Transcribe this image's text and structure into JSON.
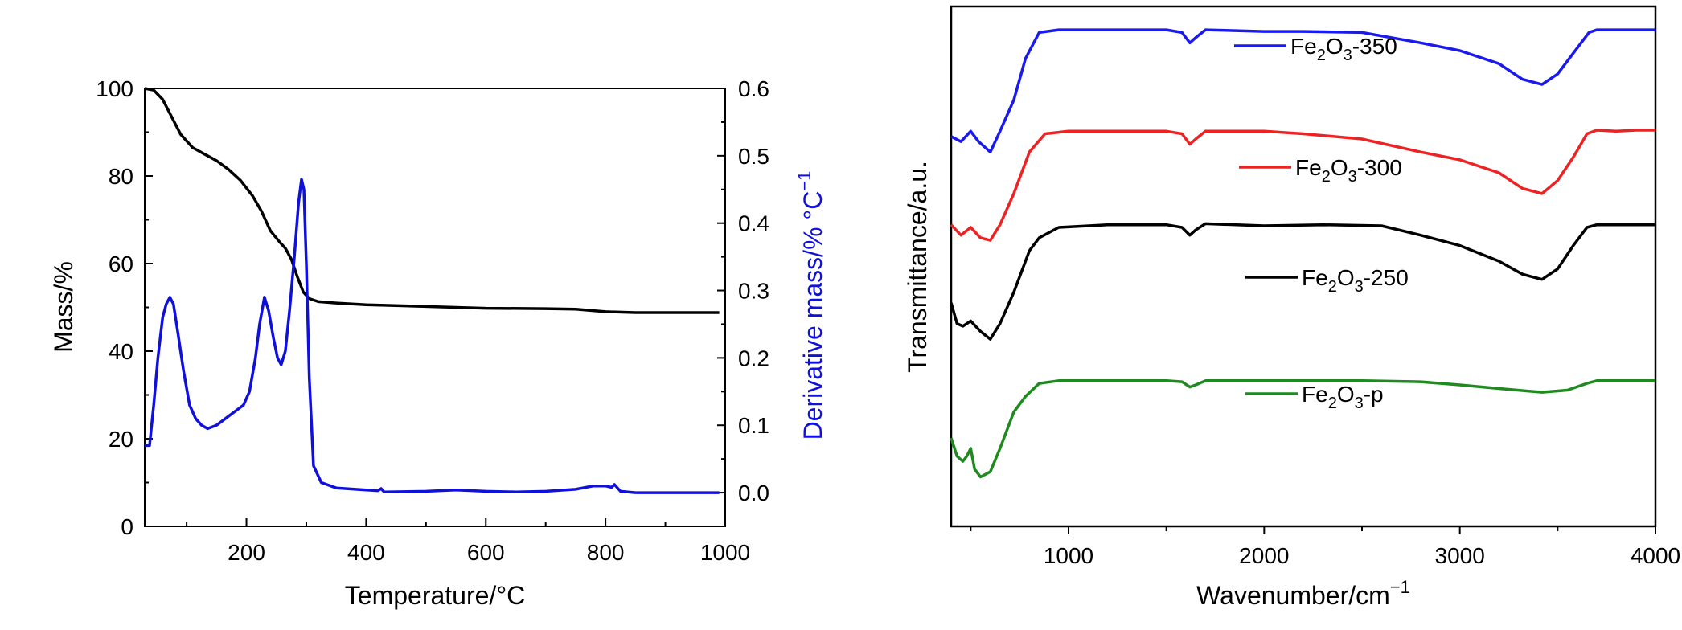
{
  "chart_data": [
    {
      "type": "line",
      "xlabel": "Temperature/°C",
      "ylabel": "Mass/%",
      "y2label": "Derivative mass/% °C",
      "y2label_sup": "−1",
      "xlim": [
        30,
        1000
      ],
      "ylim": [
        0,
        100
      ],
      "y2lim": [
        -0.05,
        0.6
      ],
      "xticks": [
        200,
        400,
        600,
        800,
        1000
      ],
      "yticks": [
        0,
        20,
        40,
        60,
        80,
        100
      ],
      "y2ticks": [
        "0.0",
        "0.1",
        "0.2",
        "0.3",
        "0.4",
        "0.5",
        "0.6"
      ],
      "grid": false,
      "series": [
        {
          "axis": "left",
          "color": "#000000",
          "points": [
            [
              30,
              100
            ],
            [
              45,
              99.6
            ],
            [
              60,
              97.5
            ],
            [
              75,
              93.5
            ],
            [
              90,
              89.5
            ],
            [
              110,
              86.5
            ],
            [
              130,
              85
            ],
            [
              150,
              83.5
            ],
            [
              170,
              81.5
            ],
            [
              190,
              79
            ],
            [
              210,
              75.5
            ],
            [
              225,
              72
            ],
            [
              240,
              67.5
            ],
            [
              255,
              65
            ],
            [
              265,
              63.5
            ],
            [
              275,
              61
            ],
            [
              285,
              57
            ],
            [
              295,
              53.5
            ],
            [
              305,
              52
            ],
            [
              320,
              51.3
            ],
            [
              350,
              51
            ],
            [
              400,
              50.6
            ],
            [
              500,
              50.2
            ],
            [
              600,
              49.8
            ],
            [
              700,
              49.7
            ],
            [
              750,
              49.6
            ],
            [
              800,
              49
            ],
            [
              850,
              48.8
            ],
            [
              900,
              48.8
            ],
            [
              950,
              48.8
            ],
            [
              990,
              48.8
            ]
          ]
        },
        {
          "axis": "right",
          "color": "#1010dd",
          "points": [
            [
              30,
              0.07
            ],
            [
              38,
              0.07
            ],
            [
              45,
              0.13
            ],
            [
              52,
              0.2
            ],
            [
              60,
              0.26
            ],
            [
              66,
              0.28
            ],
            [
              72,
              0.29
            ],
            [
              78,
              0.28
            ],
            [
              85,
              0.24
            ],
            [
              95,
              0.18
            ],
            [
              105,
              0.13
            ],
            [
              115,
              0.11
            ],
            [
              125,
              0.1
            ],
            [
              135,
              0.095
            ],
            [
              150,
              0.1
            ],
            [
              165,
              0.11
            ],
            [
              180,
              0.12
            ],
            [
              195,
              0.13
            ],
            [
              205,
              0.15
            ],
            [
              215,
              0.2
            ],
            [
              222,
              0.25
            ],
            [
              230,
              0.29
            ],
            [
              237,
              0.27
            ],
            [
              245,
              0.23
            ],
            [
              252,
              0.2
            ],
            [
              258,
              0.19
            ],
            [
              265,
              0.21
            ],
            [
              272,
              0.27
            ],
            [
              280,
              0.35
            ],
            [
              287,
              0.43
            ],
            [
              292,
              0.465
            ],
            [
              296,
              0.45
            ],
            [
              300,
              0.34
            ],
            [
              305,
              0.17
            ],
            [
              312,
              0.04
            ],
            [
              325,
              0.015
            ],
            [
              350,
              0.007
            ],
            [
              400,
              0.004
            ],
            [
              420,
              0.003
            ],
            [
              425,
              0.006
            ],
            [
              430,
              0.001
            ],
            [
              500,
              0.002
            ],
            [
              550,
              0.004
            ],
            [
              600,
              0.002
            ],
            [
              650,
              0.001
            ],
            [
              700,
              0.002
            ],
            [
              750,
              0.005
            ],
            [
              780,
              0.01
            ],
            [
              800,
              0.01
            ],
            [
              810,
              0.008
            ],
            [
              815,
              0.012
            ],
            [
              825,
              0.002
            ],
            [
              850,
              0
            ],
            [
              900,
              0
            ],
            [
              950,
              0
            ],
            [
              990,
              0
            ]
          ]
        }
      ]
    },
    {
      "type": "line",
      "xlabel": "Wavenumber/cm",
      "xlabel_sup": "−1",
      "ylabel": "Transmittance/a.u.",
      "xlim": [
        400,
        4000
      ],
      "ylim": [
        0,
        10
      ],
      "xticks": [
        1000,
        2000,
        3000,
        4000
      ],
      "yticks": [],
      "grid": false,
      "legend": "inline labels above each curve",
      "series": [
        {
          "name_main": "Fe",
          "name_sub1": "2",
          "name_mid": "O",
          "name_sub2": "3",
          "name_tail": "-350",
          "color": "#1a1aee",
          "points": [
            [
              400,
              7.5
            ],
            [
              450,
              7.4
            ],
            [
              500,
              7.6
            ],
            [
              540,
              7.4
            ],
            [
              600,
              7.2
            ],
            [
              650,
              7.6
            ],
            [
              720,
              8.2
            ],
            [
              780,
              9.0
            ],
            [
              850,
              9.5
            ],
            [
              950,
              9.55
            ],
            [
              1200,
              9.55
            ],
            [
              1500,
              9.55
            ],
            [
              1580,
              9.5
            ],
            [
              1620,
              9.3
            ],
            [
              1650,
              9.4
            ],
            [
              1700,
              9.55
            ],
            [
              2000,
              9.52
            ],
            [
              2200,
              9.52
            ],
            [
              2500,
              9.5
            ],
            [
              2800,
              9.3
            ],
            [
              3000,
              9.15
            ],
            [
              3200,
              8.9
            ],
            [
              3320,
              8.6
            ],
            [
              3420,
              8.5
            ],
            [
              3500,
              8.7
            ],
            [
              3580,
              9.1
            ],
            [
              3660,
              9.5
            ],
            [
              3700,
              9.55
            ],
            [
              3800,
              9.55
            ],
            [
              3900,
              9.55
            ],
            [
              4000,
              9.55
            ]
          ]
        },
        {
          "name_main": "Fe",
          "name_sub1": "2",
          "name_mid": "O",
          "name_sub2": "3",
          "name_tail": "-300",
          "color": "#ee2222",
          "points": [
            [
              400,
              5.8
            ],
            [
              450,
              5.6
            ],
            [
              500,
              5.75
            ],
            [
              550,
              5.55
            ],
            [
              600,
              5.5
            ],
            [
              650,
              5.8
            ],
            [
              720,
              6.4
            ],
            [
              800,
              7.2
            ],
            [
              880,
              7.55
            ],
            [
              1000,
              7.6
            ],
            [
              1500,
              7.6
            ],
            [
              1580,
              7.55
            ],
            [
              1620,
              7.35
            ],
            [
              1650,
              7.45
            ],
            [
              1700,
              7.6
            ],
            [
              2000,
              7.6
            ],
            [
              2200,
              7.55
            ],
            [
              2500,
              7.45
            ],
            [
              2800,
              7.2
            ],
            [
              3000,
              7.05
            ],
            [
              3200,
              6.8
            ],
            [
              3320,
              6.5
            ],
            [
              3420,
              6.4
            ],
            [
              3500,
              6.65
            ],
            [
              3580,
              7.1
            ],
            [
              3650,
              7.55
            ],
            [
              3700,
              7.62
            ],
            [
              3800,
              7.6
            ],
            [
              3900,
              7.62
            ],
            [
              4000,
              7.62
            ]
          ]
        },
        {
          "name_main": "Fe",
          "name_sub1": "2",
          "name_mid": "O",
          "name_sub2": "3",
          "name_tail": "-250",
          "color": "#000000",
          "points": [
            [
              400,
              4.3
            ],
            [
              430,
              3.9
            ],
            [
              460,
              3.85
            ],
            [
              500,
              3.95
            ],
            [
              550,
              3.75
            ],
            [
              600,
              3.6
            ],
            [
              650,
              3.9
            ],
            [
              720,
              4.5
            ],
            [
              800,
              5.3
            ],
            [
              850,
              5.55
            ],
            [
              950,
              5.75
            ],
            [
              1200,
              5.8
            ],
            [
              1500,
              5.8
            ],
            [
              1580,
              5.75
            ],
            [
              1620,
              5.6
            ],
            [
              1650,
              5.7
            ],
            [
              1700,
              5.82
            ],
            [
              2000,
              5.78
            ],
            [
              2300,
              5.8
            ],
            [
              2600,
              5.78
            ],
            [
              2800,
              5.6
            ],
            [
              3000,
              5.4
            ],
            [
              3200,
              5.1
            ],
            [
              3320,
              4.85
            ],
            [
              3420,
              4.75
            ],
            [
              3500,
              4.95
            ],
            [
              3580,
              5.4
            ],
            [
              3650,
              5.75
            ],
            [
              3700,
              5.8
            ],
            [
              3800,
              5.8
            ],
            [
              3900,
              5.8
            ],
            [
              4000,
              5.8
            ]
          ]
        },
        {
          "name_main": "Fe",
          "name_sub1": "2",
          "name_mid": "O",
          "name_sub2": "3",
          "name_tail": "-p",
          "color": "#1f8a1f",
          "points": [
            [
              400,
              1.7
            ],
            [
              430,
              1.35
            ],
            [
              460,
              1.25
            ],
            [
              480,
              1.35
            ],
            [
              500,
              1.5
            ],
            [
              520,
              1.1
            ],
            [
              550,
              0.95
            ],
            [
              600,
              1.05
            ],
            [
              650,
              1.5
            ],
            [
              720,
              2.2
            ],
            [
              780,
              2.5
            ],
            [
              850,
              2.75
            ],
            [
              950,
              2.8
            ],
            [
              1200,
              2.8
            ],
            [
              1500,
              2.8
            ],
            [
              1580,
              2.78
            ],
            [
              1620,
              2.68
            ],
            [
              1650,
              2.72
            ],
            [
              1700,
              2.8
            ],
            [
              2000,
              2.8
            ],
            [
              2500,
              2.8
            ],
            [
              2800,
              2.78
            ],
            [
              3000,
              2.72
            ],
            [
              3200,
              2.65
            ],
            [
              3420,
              2.58
            ],
            [
              3550,
              2.62
            ],
            [
              3650,
              2.75
            ],
            [
              3700,
              2.8
            ],
            [
              3800,
              2.8
            ],
            [
              3900,
              2.8
            ],
            [
              4000,
              2.8
            ]
          ]
        }
      ]
    }
  ]
}
